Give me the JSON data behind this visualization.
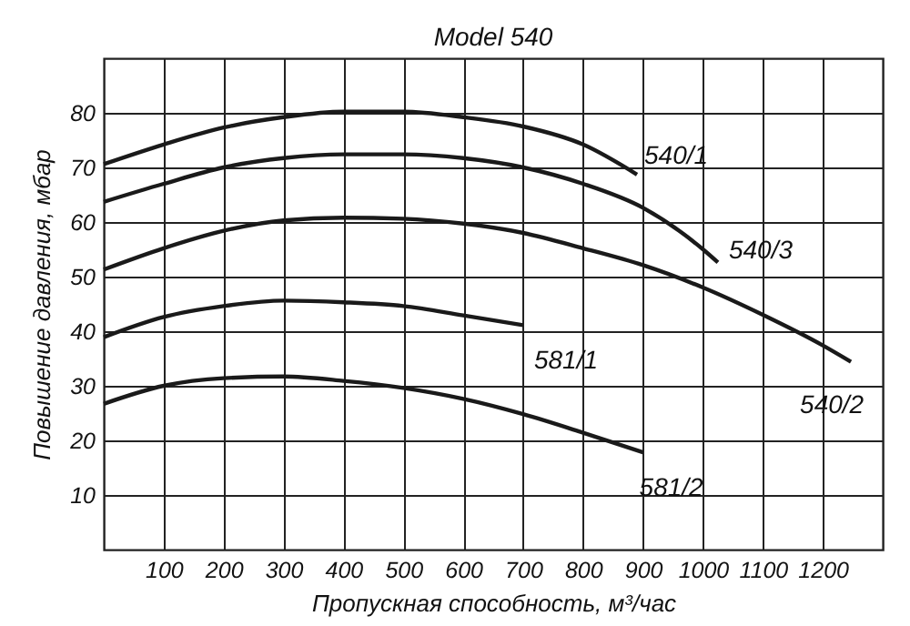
{
  "chart_data": {
    "type": "line",
    "title": "Model 540",
    "xlabel": "Пропускная способность, м³/час",
    "ylabel": "Повышение давления, мбар",
    "xlim": [
      0,
      1300
    ],
    "ylim": [
      0,
      90
    ],
    "xticks": [
      100,
      200,
      300,
      400,
      500,
      600,
      700,
      800,
      900,
      1000,
      1100,
      1200
    ],
    "yticks": [
      10,
      20,
      30,
      40,
      50,
      60,
      70,
      80
    ],
    "grid": true,
    "legend": false,
    "marker": "none",
    "line_style": "solid",
    "series": [
      {
        "name": "540/1",
        "color": "#1a1a1a",
        "x": [
          0,
          100,
          200,
          300,
          400,
          500,
          600,
          700,
          800,
          890
        ],
        "values": [
          70.6,
          74.2,
          77.3,
          79.2,
          80.2,
          80.2,
          79.2,
          77.5,
          74.2,
          68.7
        ]
      },
      {
        "name": "540/3",
        "color": "#1a1a1a",
        "x": [
          0,
          100,
          200,
          300,
          400,
          500,
          600,
          700,
          800,
          900,
          1000,
          1025
        ],
        "values": [
          63.7,
          67,
          70,
          71.7,
          72.4,
          72.4,
          71.7,
          70,
          67,
          62.6,
          55,
          52.6
        ]
      },
      {
        "name": "540/2",
        "color": "#1a1a1a",
        "x": [
          0,
          100,
          200,
          300,
          400,
          500,
          600,
          700,
          800,
          900,
          1000,
          1100,
          1200,
          1247
        ],
        "values": [
          51.3,
          55.2,
          58.4,
          60.3,
          60.8,
          60.6,
          59.7,
          58,
          55.2,
          52.1,
          48,
          43,
          37.4,
          34.4
        ]
      },
      {
        "name": "581/1",
        "color": "#1a1a1a",
        "x": [
          0,
          100,
          200,
          300,
          400,
          500,
          600,
          700
        ],
        "values": [
          38.9,
          42.6,
          44.6,
          45.6,
          45.3,
          44.6,
          42.9,
          41.1
        ]
      },
      {
        "name": "581/2",
        "color": "#1a1a1a",
        "x": [
          0,
          100,
          200,
          300,
          400,
          500,
          600,
          700,
          800,
          900
        ],
        "values": [
          26.7,
          30,
          31.4,
          31.7,
          30.9,
          29.6,
          27.6,
          24.8,
          21.4,
          17.8
        ]
      }
    ]
  }
}
